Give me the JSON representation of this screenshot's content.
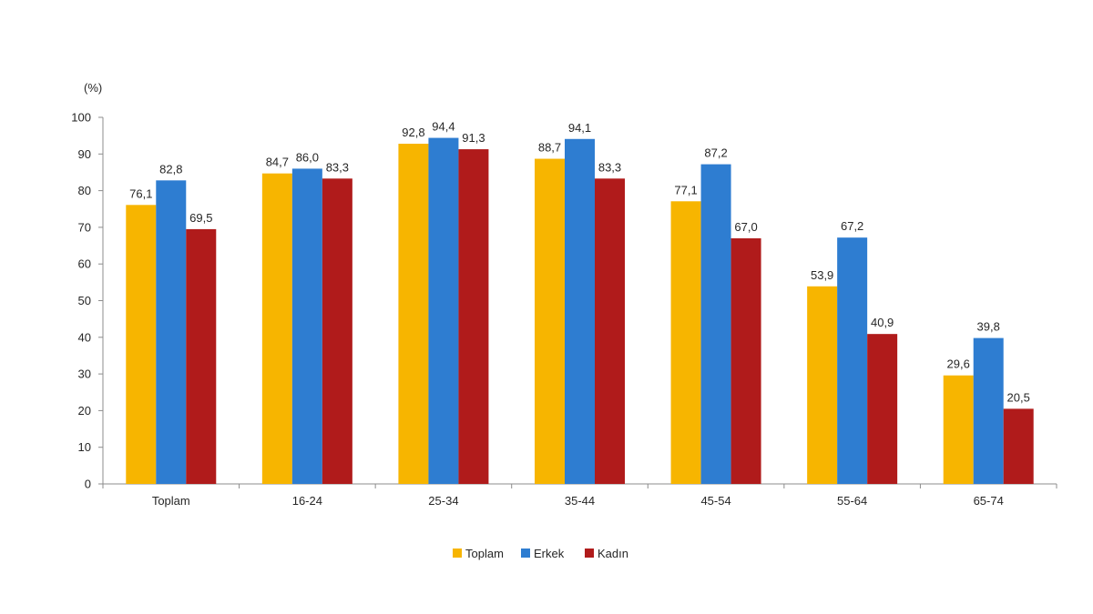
{
  "chart_data": {
    "type": "bar",
    "unit_label": "(%)",
    "categories": [
      "Toplam",
      "16-24",
      "25-34",
      "35-44",
      "45-54",
      "55-64",
      "65-74"
    ],
    "series": [
      {
        "name": "Toplam",
        "color": "#F7B500",
        "values": [
          76.1,
          84.7,
          92.8,
          88.7,
          77.1,
          53.9,
          29.6
        ],
        "labels": [
          "76,1",
          "84,7",
          "92,8",
          "88,7",
          "77,1",
          "53,9",
          "29,6"
        ]
      },
      {
        "name": "Erkek",
        "color": "#2E7DD1",
        "values": [
          82.8,
          86.0,
          94.4,
          94.1,
          87.2,
          67.2,
          39.8
        ],
        "labels": [
          "82,8",
          "86,0",
          "94,4",
          "94,1",
          "87,2",
          "67,2",
          "39,8"
        ]
      },
      {
        "name": "Kadın",
        "color": "#B01B1B",
        "values": [
          69.5,
          83.3,
          91.3,
          83.3,
          67.0,
          40.9,
          20.5
        ],
        "labels": [
          "69,5",
          "83,3",
          "91,3",
          "83,3",
          "67,0",
          "40,9",
          "20,5"
        ]
      }
    ],
    "ylim": [
      0,
      100
    ],
    "yticks": [
      0,
      10,
      20,
      30,
      40,
      50,
      60,
      70,
      80,
      90,
      100
    ],
    "grid": false,
    "legend_position": "bottom-center"
  }
}
